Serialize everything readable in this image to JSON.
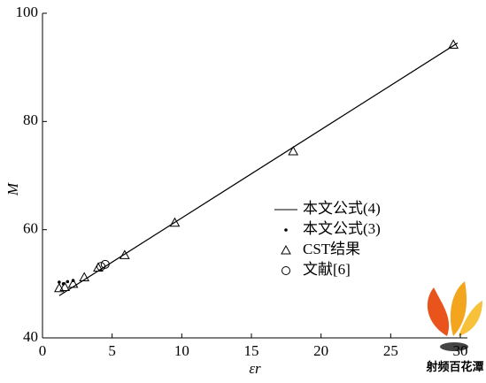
{
  "chart_data": {
    "type": "line",
    "x_label": "εr",
    "y_label": "M",
    "xlim": [
      0,
      30
    ],
    "ylim": [
      40,
      100
    ],
    "xticks": [
      0,
      5,
      10,
      15,
      20,
      25,
      30
    ],
    "yticks": [
      40,
      60,
      80,
      100
    ],
    "legend": "center-right",
    "series": [
      {
        "name": "本文公式(4)",
        "color": "#000000",
        "marker": "line",
        "x": [
          1.2,
          29.8
        ],
        "values": [
          47.8,
          94.5
        ]
      },
      {
        "name": "本文公式(3)",
        "color": "#000000",
        "marker": "dot",
        "x": [
          1.2,
          1.5,
          1.8,
          2.2
        ],
        "values": [
          50.3,
          50.0,
          50.4,
          50.6
        ]
      },
      {
        "name": "CST结果",
        "color": "#000000",
        "marker": "triangle",
        "x": [
          1.2,
          1.6,
          2.2,
          3.0,
          4.0,
          5.9,
          9.5,
          18.0,
          29.5
        ],
        "values": [
          49.2,
          49.4,
          50.0,
          51.2,
          53.0,
          55.3,
          61.3,
          74.5,
          94.2
        ]
      },
      {
        "name": "文献[6]",
        "color": "#000000",
        "marker": "circle",
        "x": [
          4.2,
          4.5
        ],
        "values": [
          53.2,
          53.6
        ]
      }
    ]
  },
  "watermark": "射频百花潭"
}
